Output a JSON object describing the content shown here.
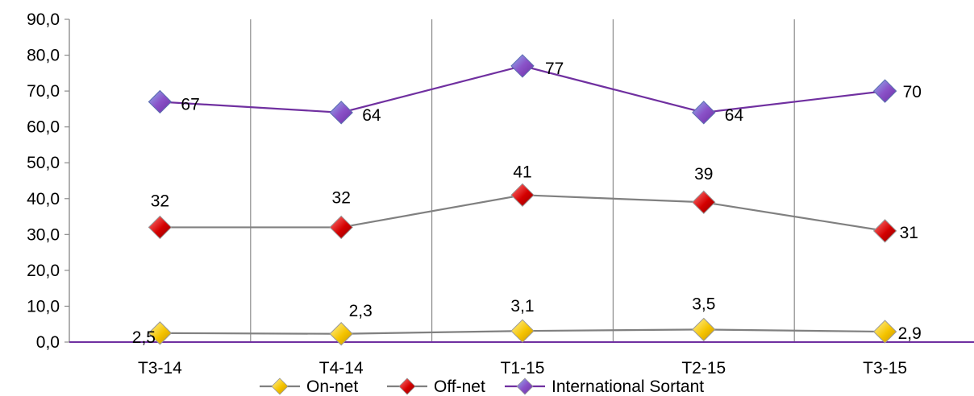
{
  "chart_data": {
    "type": "line",
    "title": "",
    "xlabel": "",
    "ylabel": "",
    "categories": [
      "T3-14",
      "T4-14",
      "T1-15",
      "T2-15",
      "T3-15"
    ],
    "ylim": [
      0,
      90
    ],
    "yticks": [
      "0,0",
      "10,0",
      "20,0",
      "30,0",
      "40,0",
      "50,0",
      "60,0",
      "70,0",
      "80,0",
      "90,0"
    ],
    "grid": "vertical lines between categories",
    "legend_position": "bottom",
    "series": [
      {
        "name": "On-net",
        "values": [
          2.5,
          2.3,
          3.1,
          3.5,
          2.9
        ],
        "labels": [
          "2,5",
          "2,3",
          "3,1",
          "3,5",
          "2,9"
        ],
        "line_color": "#808080",
        "marker_color": "#f5c400"
      },
      {
        "name": "Off-net",
        "values": [
          32,
          32,
          41,
          39,
          31
        ],
        "labels": [
          "32",
          "32",
          "41",
          "39",
          "31"
        ],
        "line_color": "#808080",
        "marker_color": "#d40000"
      },
      {
        "name": "International Sortant",
        "values": [
          67,
          64,
          77,
          64,
          70
        ],
        "labels": [
          "67",
          "64",
          "77",
          "64",
          "70"
        ],
        "line_color": "#7030a0",
        "marker_color": "#8a52c8"
      }
    ]
  }
}
